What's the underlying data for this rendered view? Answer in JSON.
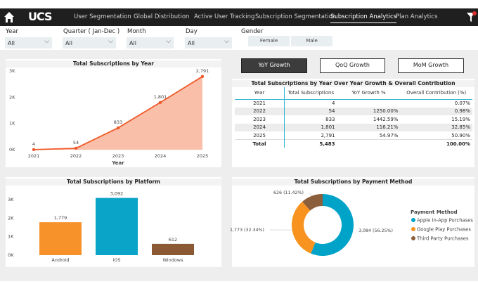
{
  "nav": {
    "logo": "UCS",
    "tabs": [
      "User Segmentation",
      "Global Distribution",
      "Active User Tracking",
      "Subscription Segmentation",
      "Subscription Analytics",
      "Plan Analytics"
    ],
    "active": "Subscription Analytics"
  },
  "filters": {
    "year": {
      "label": "Year",
      "value": "All"
    },
    "quarter": {
      "label": "Quarter ( Jan-Dec )",
      "value": "All"
    },
    "month": {
      "label": "Month",
      "value": "All"
    },
    "day": {
      "label": "Day",
      "value": "All"
    },
    "gender": {
      "label": "Gender",
      "options": [
        "Female",
        "Male"
      ]
    }
  },
  "growth_buttons": [
    "YoY Growth",
    "QoQ Growth",
    "MoM Growth"
  ],
  "table": {
    "title": "Total Subscriptions by Year Over Year Growth & Overall Contribution",
    "columns": [
      "Year",
      "Total Subscriptions",
      "YoY Growth %",
      "Overall Contribution (%)"
    ],
    "rows": [
      [
        "2021",
        "4",
        "",
        "0.07%"
      ],
      [
        "2022",
        "54",
        "1250.00%",
        "0.98%"
      ],
      [
        "2023",
        "833",
        "1442.59%",
        "15.19%"
      ],
      [
        "2024",
        "1,801",
        "116.21%",
        "32.85%"
      ],
      [
        "2025",
        "2,791",
        "54.97%",
        "50.90%"
      ]
    ],
    "total": [
      "Total",
      "5,483",
      "",
      "100.00%"
    ]
  },
  "chart_data": [
    {
      "type": "area",
      "title": "Total Subscriptions by Year",
      "xlabel": "Year",
      "ylabel": "",
      "categories": [
        "2021",
        "2022",
        "2023",
        "2024",
        "2025"
      ],
      "values": [
        4,
        54,
        833,
        1801,
        2791
      ],
      "data_labels": [
        "4",
        "54",
        "833",
        "1,801",
        "2,791"
      ],
      "yticks": [
        "0K",
        "1K",
        "2K",
        "3K"
      ],
      "ylim": [
        0,
        3000
      ],
      "color": "#f05a28",
      "fill": "#f9b8a0"
    },
    {
      "type": "bar",
      "title": "Total Subscriptions by Platform",
      "categories": [
        "Android",
        "iOS",
        "Windows"
      ],
      "values": [
        1779,
        3092,
        612
      ],
      "data_labels": [
        "1,779",
        "3,092",
        "612"
      ],
      "yticks": [
        "0K",
        "1K",
        "2K",
        "3K"
      ],
      "ylim": [
        0,
        3000
      ],
      "colors": [
        "#f7922a",
        "#0aa4c8",
        "#8b5a34"
      ]
    },
    {
      "type": "pie",
      "title": "Total Subscriptions by Payment Method",
      "legend_title": "Payment Method",
      "legend_position": "right",
      "labels": [
        "Apple In-App Purchases",
        "Google Play Purchases",
        "Third Party Purchases"
      ],
      "values": [
        3084,
        1773,
        626
      ],
      "data_labels": [
        "3,084 (56.25%)",
        "1,773 (32.34%)",
        "626 (11.42%)"
      ],
      "colors": [
        "#00a3c8",
        "#f7931e",
        "#8b5e3c"
      ]
    }
  ]
}
